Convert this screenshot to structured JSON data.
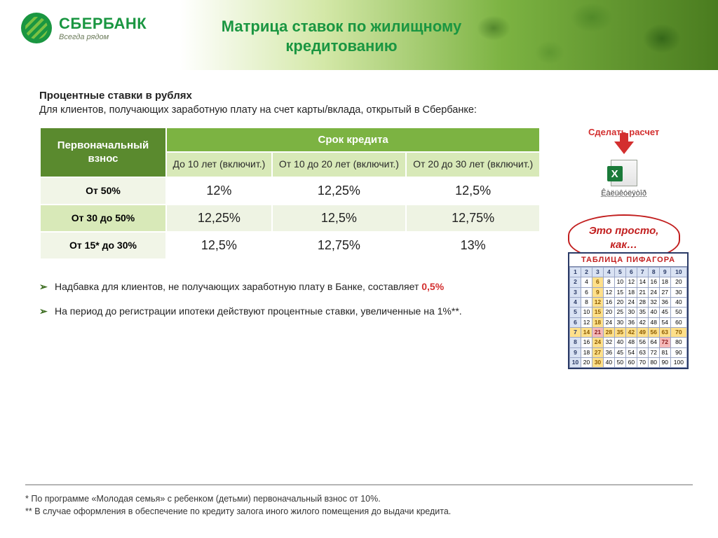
{
  "brand": {
    "name": "СБЕРБАНК",
    "tagline": "Всегда рядом"
  },
  "title": "Матрица ставок по жилищному кредитованию",
  "intro": {
    "heading": "Процентные ставки в рублях",
    "desc": "Для клиентов, получающих заработную плату на счет карты/вклада, открытый в Сбербанке:"
  },
  "table": {
    "corner": "Первоначальный взнос",
    "term_header": "Срок кредита",
    "columns": [
      "До 10 лет (включит.)",
      "От 10 до 20 лет (включит.)",
      "От 20 до 30 лет (включит.)"
    ],
    "rows": [
      {
        "label": "От 50%",
        "cells": [
          "12%",
          "12,25%",
          "12,5%"
        ]
      },
      {
        "label": "От 30 до 50%",
        "cells": [
          "12,25%",
          "12,5%",
          "12,75%"
        ]
      },
      {
        "label": "От 15* до 30%",
        "cells": [
          "12,5%",
          "12,75%",
          "13%"
        ]
      }
    ],
    "colors": {
      "corner_bg": "#5a8a2e",
      "term_bg": "#7cb342",
      "col_header_bg": "#d8e9b8",
      "row_alt_a": "#f1f5e7",
      "row_alt_b": "#d8e9b8",
      "cell_alt_b": "#eef3e3"
    }
  },
  "side": {
    "calc_label": "Сделать расчет",
    "excel_caption": "Êàëüêóëÿòîð",
    "bubble": "Это просто, как…"
  },
  "notes": {
    "items": [
      {
        "pre": "Надбавка для клиентов, не получающих заработную плату в Банке, составляет ",
        "hl": "0,5%",
        "post": ""
      },
      {
        "pre": "На период до регистрации ипотеки действуют процентные ставки, увеличенные на 1%**.",
        "hl": "",
        "post": ""
      }
    ]
  },
  "pythagoras": {
    "title": "ТАБЛИЦА  ПИФАГОРА",
    "highlight_row": 7,
    "highlight_col": 3,
    "highlight2_row": 8,
    "highlight2_col": 9
  },
  "footnotes": [
    "* По программе «Молодая семья» с ребенком (детьми) первоначальный взнос от 10%.",
    "** В случае оформления в обеспечение по кредиту залога иного жилого помещения до выдачи кредита."
  ]
}
